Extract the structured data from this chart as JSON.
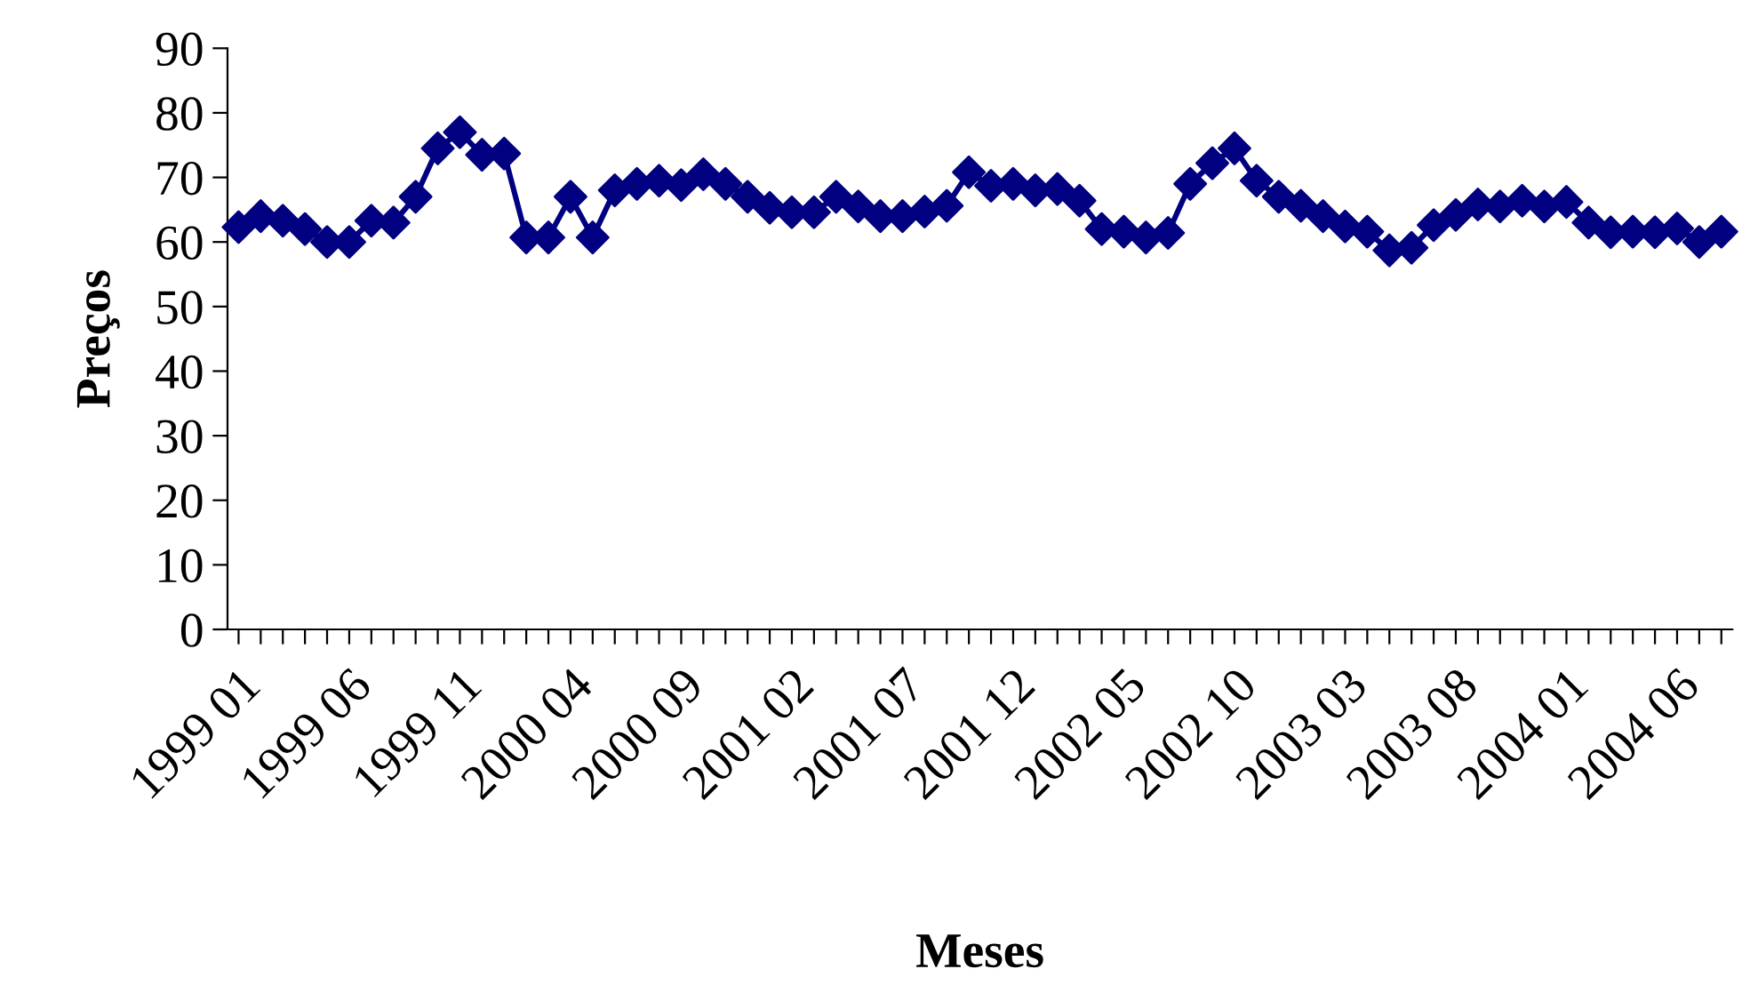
{
  "chart_data": {
    "type": "line",
    "xlabel": "Meses",
    "ylabel": "Preços",
    "categories": [
      "1999 01",
      null,
      null,
      null,
      null,
      "1999 06",
      null,
      null,
      null,
      null,
      "1999 11",
      null,
      null,
      null,
      null,
      "2000 04",
      null,
      null,
      null,
      null,
      "2000 09",
      null,
      null,
      null,
      null,
      "2001 02",
      null,
      null,
      null,
      null,
      "2001 07",
      null,
      null,
      null,
      null,
      "2001 12",
      null,
      null,
      null,
      null,
      "2002 05",
      null,
      null,
      null,
      null,
      "2002 10",
      null,
      null,
      null,
      null,
      "2003 03",
      null,
      null,
      null,
      null,
      "2003 08",
      null,
      null,
      null,
      null,
      "2004 01",
      null,
      null,
      null,
      null,
      "2004 06",
      null,
      null
    ],
    "series": [
      {
        "color": "#000080",
        "values": [
          62.3,
          64,
          63.3,
          62,
          60,
          60,
          63.3,
          63,
          67,
          74.5,
          77,
          73.5,
          73.7,
          60.7,
          60.7,
          67,
          60.7,
          68,
          69,
          69.5,
          68.8,
          70.5,
          69,
          67,
          65.3,
          64.6,
          64.6,
          67,
          65.5,
          64,
          64,
          64.7,
          65.6,
          70.8,
          68.7,
          69,
          68,
          68.2,
          66.4,
          62,
          61.6,
          60.7,
          61.4,
          69,
          72.2,
          74.5,
          69.5,
          67,
          65.6,
          64,
          62.4,
          61.6,
          58.7,
          59.1,
          62.6,
          64.2,
          65.8,
          65.5,
          66.4,
          65.5,
          66.2,
          63,
          61.5,
          61.6,
          61.5,
          62.1,
          60,
          61.6
        ]
      }
    ],
    "ylim": [
      0,
      90
    ],
    "yticks": [
      0,
      10,
      20,
      30,
      40,
      50,
      60,
      70,
      80,
      90
    ],
    "grid": false,
    "marker": "diamond",
    "line_style": "solid"
  }
}
